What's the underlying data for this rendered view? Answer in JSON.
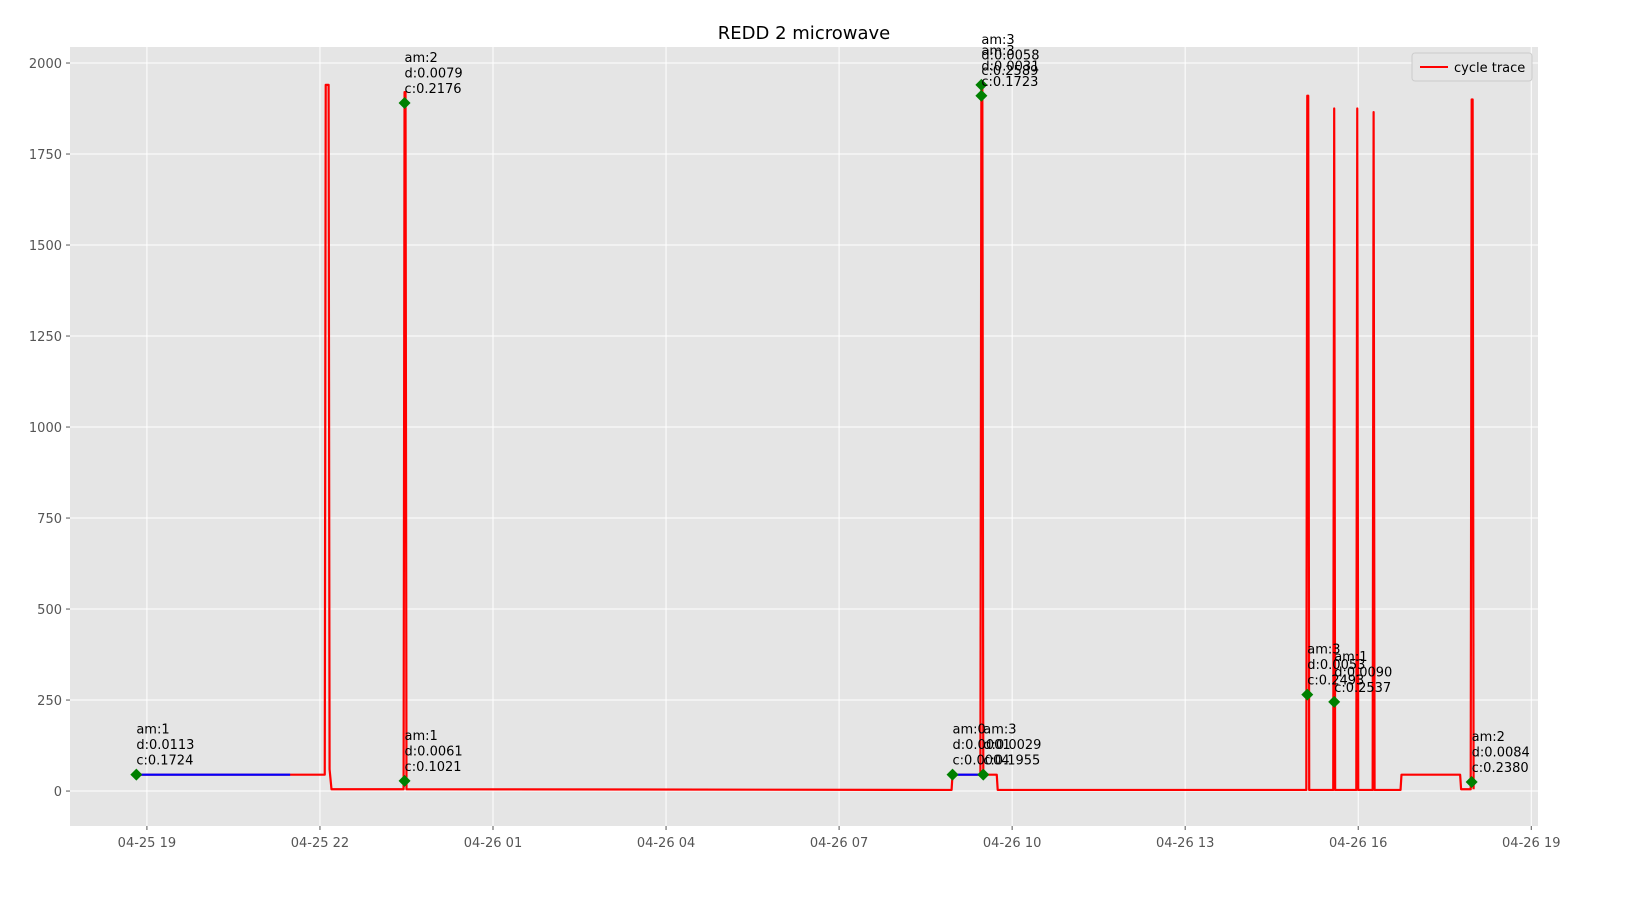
{
  "chart_data": {
    "type": "line",
    "title": "REDD 2 microwave",
    "xlim": [
      "04-25 17:40",
      "04-26 19:07"
    ],
    "ylim": [
      -96,
      2044
    ],
    "xticks": [
      {
        "value": "04-25 19:00",
        "label": "04-25 19"
      },
      {
        "value": "04-25 22:00",
        "label": "04-25 22"
      },
      {
        "value": "04-26 01:00",
        "label": "04-26 01"
      },
      {
        "value": "04-26 04:00",
        "label": "04-26 04"
      },
      {
        "value": "04-26 07:00",
        "label": "04-26 07"
      },
      {
        "value": "04-26 10:00",
        "label": "04-26 10"
      },
      {
        "value": "04-26 13:00",
        "label": "04-26 13"
      },
      {
        "value": "04-26 16:00",
        "label": "04-26 16"
      },
      {
        "value": "04-26 19:00",
        "label": "04-26 19"
      }
    ],
    "yticks": [
      0,
      250,
      500,
      750,
      1000,
      1250,
      1500,
      1750,
      2000
    ],
    "grid": true,
    "legend": "upper right",
    "series": [
      {
        "name": "cycle trace",
        "color": "#ff0000",
        "x": [
          "04-25 18:49",
          "04-25 22:05",
          "04-25 22:06",
          "04-25 22:09",
          "04-25 22:10",
          "04-25 22:12",
          "04-25 23:27",
          "04-25 23:28",
          "04-25 23:29",
          "04-25 23:30",
          "04-26 08:57",
          "04-26 08:58",
          "04-26 09:27",
          "04-26 09:28",
          "04-26 09:29",
          "04-26 09:30",
          "04-26 09:44",
          "04-26 09:45",
          "04-26 15:06",
          "04-26 15:07",
          "04-26 15:08",
          "04-26 15:09",
          "04-26 15:34",
          "04-26 15:35",
          "04-26 15:36",
          "04-26 15:58",
          "04-26 15:59",
          "04-26 16:00",
          "04-26 16:15",
          "04-26 16:16",
          "04-26 16:17",
          "04-26 16:44",
          "04-26 16:45",
          "04-26 17:46",
          "04-26 17:47",
          "04-26 17:57",
          "04-26 17:58",
          "04-26 17:59",
          "04-26 18:00"
        ],
        "values": [
          45,
          45,
          1940,
          1940,
          60,
          5,
          5,
          1920,
          1920,
          5,
          3,
          45,
          45,
          1940,
          1940,
          45,
          45,
          3,
          3,
          1910,
          1910,
          3,
          3,
          1875,
          3,
          3,
          1875,
          3,
          3,
          1865,
          3,
          3,
          45,
          45,
          5,
          5,
          1900,
          1900,
          5
        ]
      },
      {
        "color": "#0000ff",
        "x": [
          "04-25 18:49",
          "04-25 21:29",
          null,
          "04-26 08:58",
          "04-26 09:25"
        ],
        "values": [
          45,
          45,
          null,
          45,
          45
        ]
      }
    ],
    "markers": {
      "color": "#008000",
      "points": [
        {
          "x": "04-25 18:49",
          "y": 45,
          "lines": [
            "am:1",
            "d:0.0113",
            "c:0.1724"
          ]
        },
        {
          "x": "04-25 23:28",
          "y": 1890,
          "lines": [
            "am:2",
            "d:0.0079",
            "c:0.2176"
          ]
        },
        {
          "x": "04-25 23:28",
          "y": 28,
          "lines": [
            "am:1",
            "d:0.0061",
            "c:0.1021"
          ]
        },
        {
          "x": "04-26 08:58",
          "y": 45,
          "lines": [
            "am:0",
            "d:0.0001",
            "c:0.0004"
          ]
        },
        {
          "x": "04-26 09:30",
          "y": 45,
          "lines": [
            "am:3",
            "d:0.0029",
            "c:0.1955"
          ]
        },
        {
          "x": "04-26 09:28",
          "y": 1940,
          "lines": [
            "am:3",
            "d:0.0058",
            "c:0.2589"
          ]
        },
        {
          "x": "04-26 09:28",
          "y": 1910,
          "lines": [
            "am:3",
            "d:0.0031",
            "c:0.1723"
          ]
        },
        {
          "x": "04-26 15:07",
          "y": 265,
          "lines": [
            "am:3",
            "d:0.0053",
            "c:0.2493"
          ]
        },
        {
          "x": "04-26 15:35",
          "y": 245,
          "lines": [
            "am:1",
            "d:0.0090",
            "c:0.2537"
          ]
        },
        {
          "x": "04-26 17:58",
          "y": 25,
          "lines": [
            "am:2",
            "d:0.0084",
            "c:0.2380"
          ]
        }
      ]
    }
  }
}
